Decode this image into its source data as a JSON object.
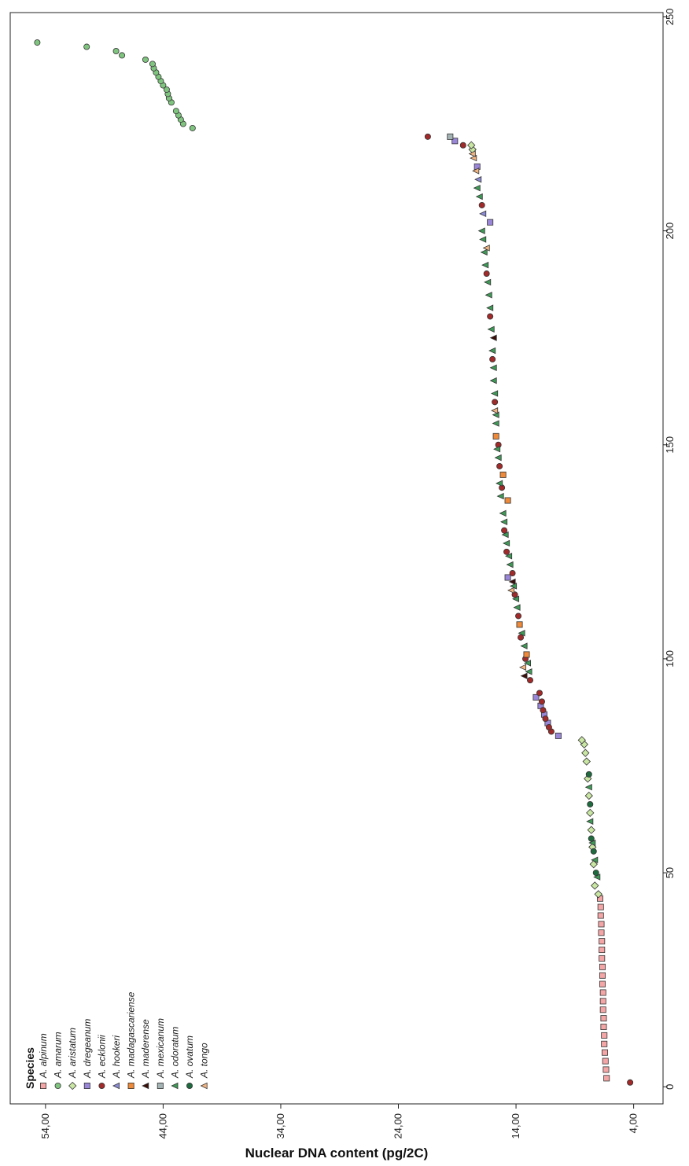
{
  "chart_data": {
    "type": "scatter",
    "title": "",
    "xlabel": "Nuclear DNA content (pg/2C)",
    "ylabel": "",
    "x_ticks": [
      "54,00",
      "44,00",
      "34,00",
      "24,00",
      "14,00",
      "4,00"
    ],
    "x_tick_values": [
      54,
      44,
      34,
      24,
      14,
      4
    ],
    "y_ticks": [
      "0",
      "50",
      "100",
      "150",
      "200",
      "250"
    ],
    "y_tick_values": [
      0,
      50,
      100,
      150,
      200,
      250
    ],
    "x_range": [
      57,
      1.5
    ],
    "y_range": [
      -4,
      251
    ],
    "orientation": "rotated (DNA content runs right-to-left along the bottom; rank runs bottom-to-top on the right axis)",
    "legend": {
      "title": "Species",
      "placement": "bottom-left",
      "entries": [
        {
          "label": "A. alpinum",
          "shape": "square",
          "color": "#f4a6a6"
        },
        {
          "label": "A. amarum",
          "shape": "circle",
          "color": "#7fc47f"
        },
        {
          "label": "A. aristatum",
          "shape": "diamond",
          "color": "#c9e6a3"
        },
        {
          "label": "A. dregeanum",
          "shape": "square",
          "color": "#9a86d8"
        },
        {
          "label": "A. ecklonii",
          "shape": "circle",
          "color": "#a12a2a"
        },
        {
          "label": "A. hookeri",
          "shape": "triangle",
          "color": "#8a8ad6"
        },
        {
          "label": "A. madagascariense",
          "shape": "square",
          "color": "#ee8a3a"
        },
        {
          "label": "A. maderense",
          "shape": "triangle",
          "color": "#3a0f0a"
        },
        {
          "label": "A. mexicanum",
          "shape": "square",
          "color": "#a3b2b2"
        },
        {
          "label": "A. odoratum",
          "shape": "triangle",
          "color": "#3f9a57"
        },
        {
          "label": "A. ovatum",
          "shape": "circle",
          "color": "#1f6b3f"
        },
        {
          "label": "A. tongo",
          "shape": "triangle",
          "color": "#f2b582"
        }
      ]
    },
    "series": [
      {
        "name": "A. alpinum",
        "points": [
          [
            6.3,
            2
          ],
          [
            6.35,
            4
          ],
          [
            6.4,
            6
          ],
          [
            6.45,
            8
          ],
          [
            6.5,
            10
          ],
          [
            6.5,
            12
          ],
          [
            6.55,
            14
          ],
          [
            6.55,
            16
          ],
          [
            6.6,
            18
          ],
          [
            6.6,
            20
          ],
          [
            6.6,
            22
          ],
          [
            6.65,
            24
          ],
          [
            6.65,
            26
          ],
          [
            6.65,
            28
          ],
          [
            6.7,
            30
          ],
          [
            6.7,
            32
          ],
          [
            6.7,
            34
          ],
          [
            6.75,
            36
          ],
          [
            6.75,
            38
          ],
          [
            6.8,
            40
          ],
          [
            6.8,
            42
          ],
          [
            6.85,
            44
          ]
        ]
      },
      {
        "name": "A. amarum",
        "points": [
          [
            41.5,
            224
          ],
          [
            42.3,
            225
          ],
          [
            42.5,
            226
          ],
          [
            42.7,
            227
          ],
          [
            42.9,
            228
          ],
          [
            43.3,
            230
          ],
          [
            43.5,
            231
          ],
          [
            43.6,
            232
          ],
          [
            43.7,
            233
          ],
          [
            44.0,
            234
          ],
          [
            44.2,
            235
          ],
          [
            44.4,
            236
          ],
          [
            44.6,
            237
          ],
          [
            44.8,
            238
          ],
          [
            44.9,
            239
          ],
          [
            45.5,
            240
          ],
          [
            47.5,
            241
          ],
          [
            48.0,
            242
          ],
          [
            50.5,
            243
          ],
          [
            54.7,
            244
          ]
        ]
      },
      {
        "name": "A. aristatum",
        "points": [
          [
            7.0,
            45
          ],
          [
            7.3,
            47
          ],
          [
            7.4,
            52
          ],
          [
            7.5,
            56
          ],
          [
            7.6,
            60
          ],
          [
            7.7,
            64
          ],
          [
            7.8,
            68
          ],
          [
            7.9,
            72
          ],
          [
            8.0,
            76
          ],
          [
            8.1,
            78
          ],
          [
            8.2,
            80
          ],
          [
            8.4,
            81
          ],
          [
            17.7,
            219
          ],
          [
            17.8,
            220
          ]
        ]
      },
      {
        "name": "A. dregeanum",
        "points": [
          [
            10.4,
            82
          ],
          [
            11.3,
            85
          ],
          [
            11.6,
            87
          ],
          [
            11.9,
            89
          ],
          [
            12.3,
            91
          ],
          [
            14.7,
            119
          ],
          [
            16.2,
            202
          ],
          [
            17.3,
            215
          ],
          [
            19.2,
            221
          ]
        ]
      },
      {
        "name": "A. ecklonii",
        "points": [
          [
            4.3,
            1
          ],
          [
            11.0,
            83
          ],
          [
            11.2,
            84
          ],
          [
            11.5,
            86
          ],
          [
            11.7,
            88
          ],
          [
            11.8,
            90
          ],
          [
            12.0,
            92
          ],
          [
            12.8,
            95
          ],
          [
            13.2,
            100
          ],
          [
            13.6,
            105
          ],
          [
            13.8,
            110
          ],
          [
            14.1,
            115
          ],
          [
            14.3,
            120
          ],
          [
            14.8,
            125
          ],
          [
            15.0,
            130
          ],
          [
            15.2,
            140
          ],
          [
            15.4,
            145
          ],
          [
            15.5,
            150
          ],
          [
            15.8,
            160
          ],
          [
            16.0,
            170
          ],
          [
            16.2,
            180
          ],
          [
            16.5,
            190
          ],
          [
            16.9,
            206
          ],
          [
            18.5,
            220
          ],
          [
            21.5,
            222
          ]
        ]
      },
      {
        "name": "A. hookeri",
        "points": [
          [
            16.8,
            204
          ],
          [
            17.2,
            212
          ]
        ]
      },
      {
        "name": "A. madagascariense",
        "points": [
          [
            13.1,
            101
          ],
          [
            13.7,
            108
          ],
          [
            14.7,
            137
          ],
          [
            15.1,
            143
          ],
          [
            15.7,
            152
          ]
        ]
      },
      {
        "name": "A. maderense",
        "points": [
          [
            13.3,
            96
          ],
          [
            14.3,
            118
          ],
          [
            15.9,
            175
          ]
        ]
      },
      {
        "name": "A. mexicanum",
        "points": [
          [
            19.6,
            222
          ]
        ]
      },
      {
        "name": "A. odoratum",
        "points": [
          [
            7.1,
            49
          ],
          [
            7.3,
            53
          ],
          [
            7.5,
            57
          ],
          [
            7.7,
            62
          ],
          [
            7.8,
            70
          ],
          [
            12.9,
            97
          ],
          [
            13.0,
            99
          ],
          [
            13.3,
            103
          ],
          [
            13.5,
            106
          ],
          [
            13.9,
            112
          ],
          [
            14.0,
            114
          ],
          [
            14.2,
            117
          ],
          [
            14.5,
            122
          ],
          [
            14.6,
            124
          ],
          [
            14.8,
            127
          ],
          [
            14.9,
            129
          ],
          [
            15.0,
            132
          ],
          [
            15.1,
            134
          ],
          [
            15.3,
            138
          ],
          [
            15.4,
            141
          ],
          [
            15.5,
            147
          ],
          [
            15.6,
            149
          ],
          [
            15.7,
            155
          ],
          [
            15.7,
            157
          ],
          [
            15.8,
            162
          ],
          [
            15.9,
            165
          ],
          [
            15.9,
            168
          ],
          [
            16.0,
            172
          ],
          [
            16.1,
            177
          ],
          [
            16.2,
            182
          ],
          [
            16.3,
            185
          ],
          [
            16.4,
            188
          ],
          [
            16.6,
            192
          ],
          [
            16.7,
            195
          ],
          [
            16.8,
            198
          ],
          [
            16.9,
            200
          ],
          [
            17.1,
            208
          ],
          [
            17.3,
            210
          ]
        ]
      },
      {
        "name": "A. ovatum",
        "points": [
          [
            7.2,
            50
          ],
          [
            7.4,
            55
          ],
          [
            7.6,
            58
          ],
          [
            7.7,
            66
          ],
          [
            7.8,
            73
          ]
        ]
      },
      {
        "name": "A. tongo",
        "points": [
          [
            13.4,
            98
          ],
          [
            14.4,
            116
          ],
          [
            15.8,
            158
          ],
          [
            16.5,
            196
          ],
          [
            17.4,
            214
          ],
          [
            17.6,
            217
          ],
          [
            17.7,
            218
          ]
        ]
      }
    ]
  }
}
